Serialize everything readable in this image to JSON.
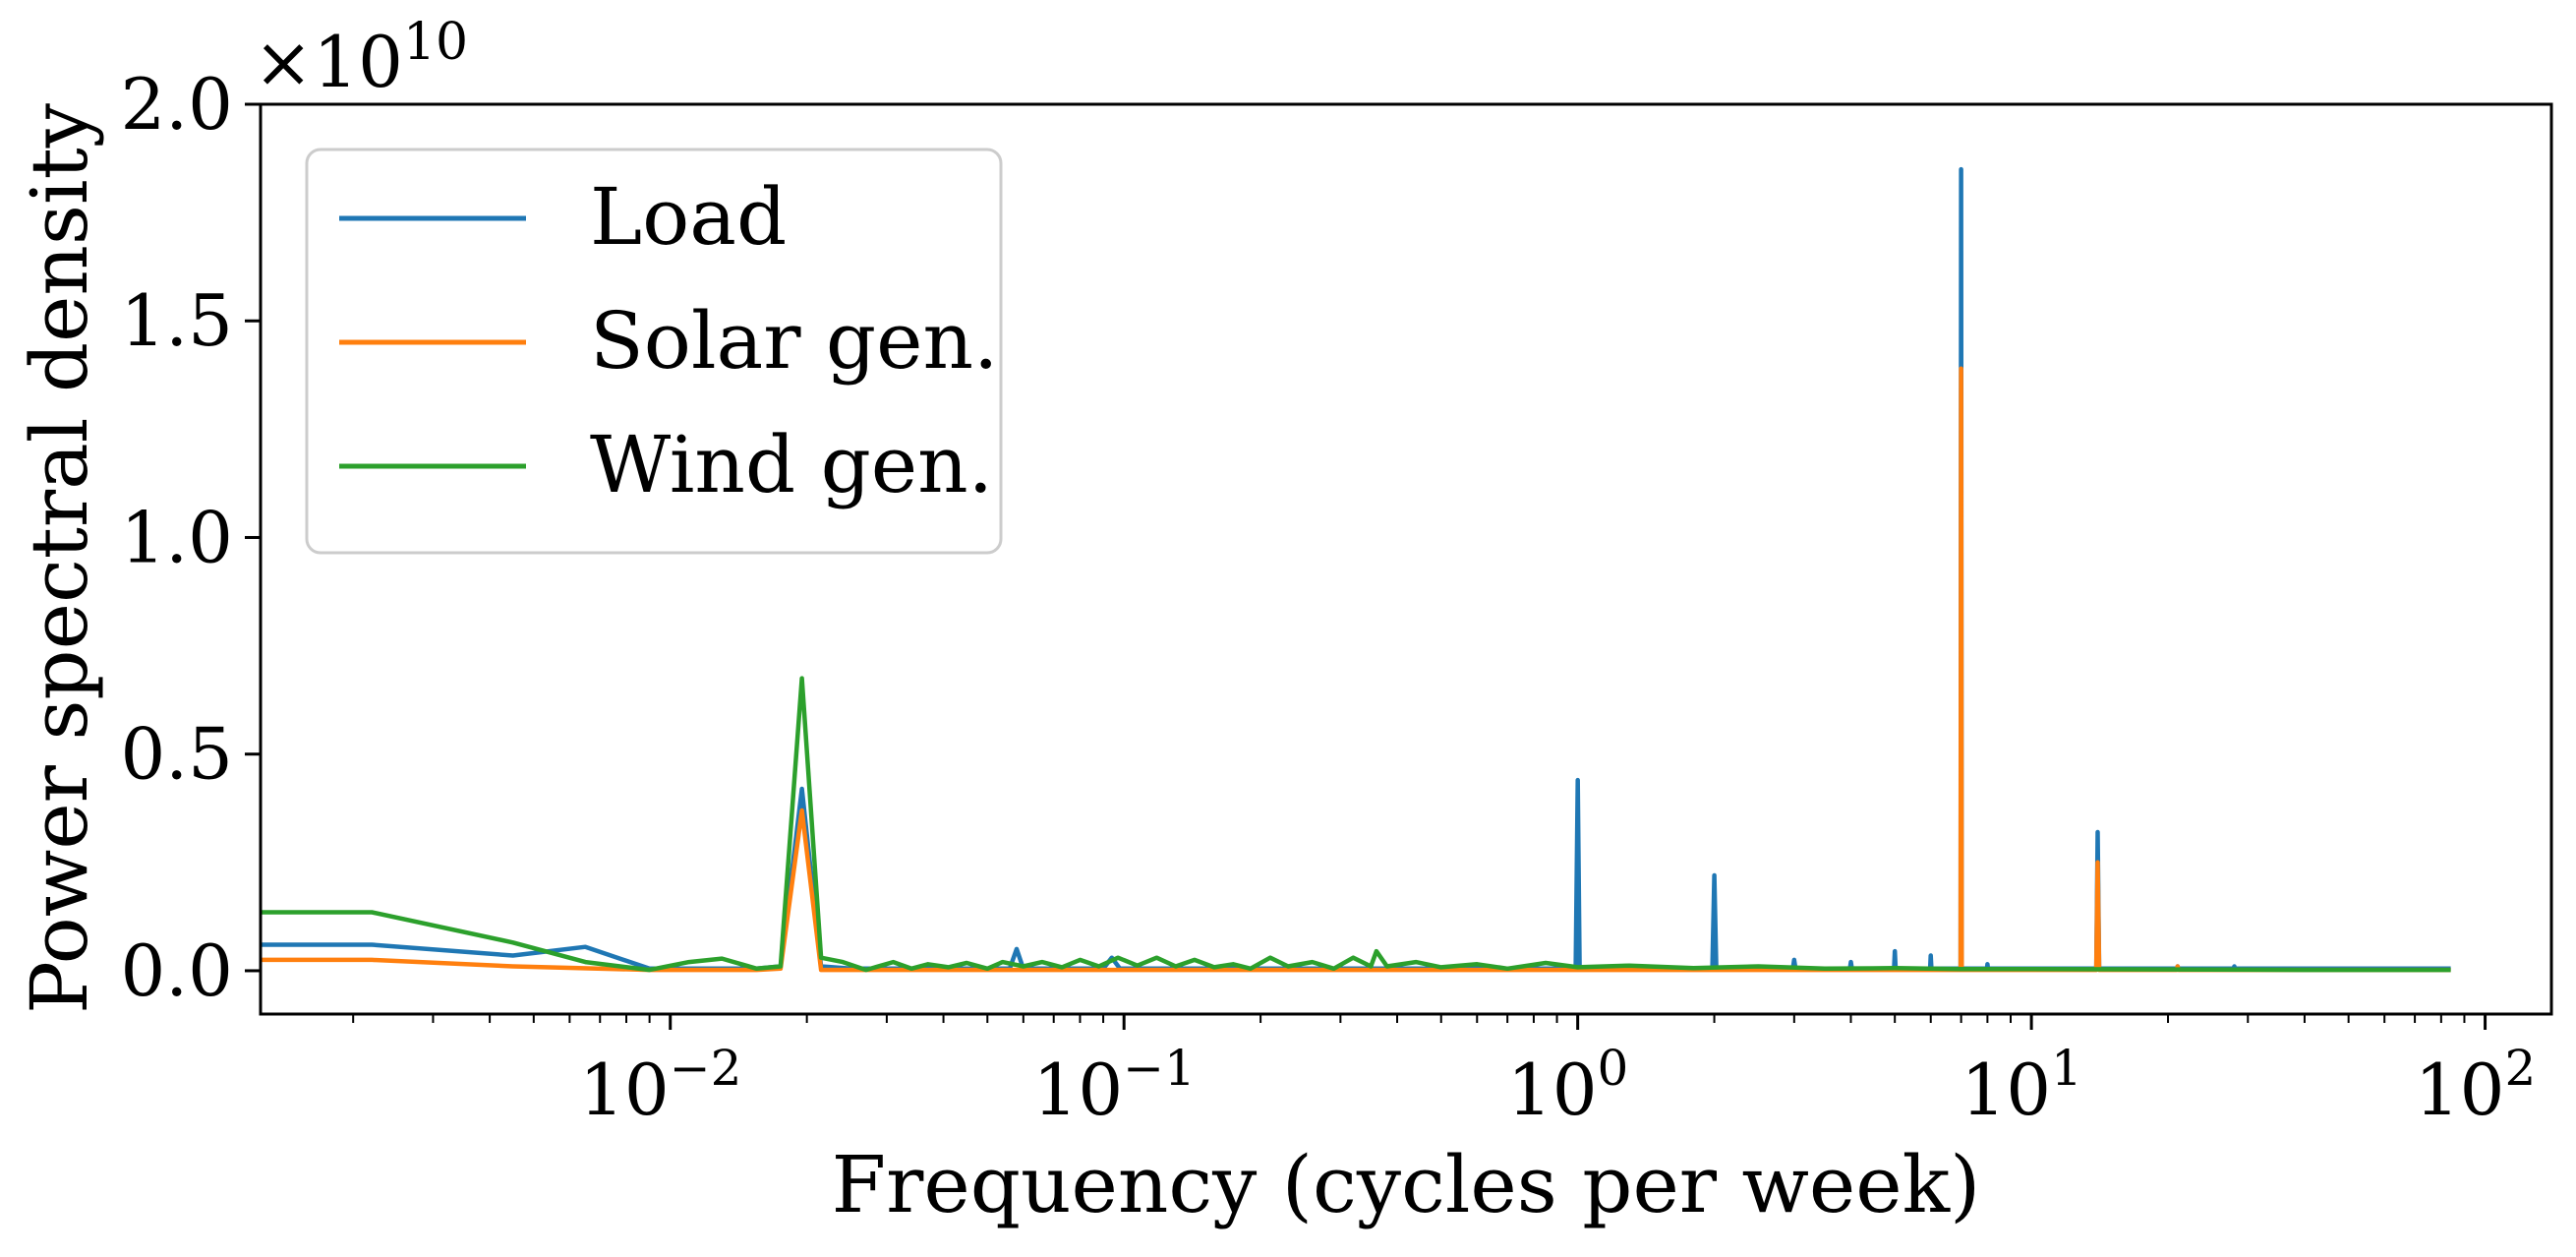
{
  "chart_data": {
    "type": "line",
    "title": "",
    "xlabel": "Frequency (cycles per week)",
    "ylabel": "Power spectral density",
    "xscale": "log",
    "xlim": [
      0.00125,
      140
    ],
    "ylim": [
      -0.1,
      2.0
    ],
    "y_multiplier_label": "×10",
    "y_multiplier_exponent": "10",
    "xticks": [
      {
        "value": 0.01,
        "base": "10",
        "exp": "−2"
      },
      {
        "value": 0.1,
        "base": "10",
        "exp": "−1"
      },
      {
        "value": 1,
        "base": "10",
        "exp": "0"
      },
      {
        "value": 10,
        "base": "10",
        "exp": "1"
      },
      {
        "value": 100,
        "base": "10",
        "exp": "2"
      }
    ],
    "yticks": [
      {
        "value": 0.0,
        "label": "0.0"
      },
      {
        "value": 0.5,
        "label": "0.5"
      },
      {
        "value": 1.0,
        "label": "1.0"
      },
      {
        "value": 1.5,
        "label": "1.5"
      },
      {
        "value": 2.0,
        "label": "2.0"
      }
    ],
    "grid": false,
    "legend_position": "top-left",
    "series": [
      {
        "name": "Load",
        "color": "#1f77b4",
        "points": [
          [
            0.00125,
            0.06
          ],
          [
            0.0022,
            0.06
          ],
          [
            0.0045,
            0.035
          ],
          [
            0.0065,
            0.055
          ],
          [
            0.009,
            0.005
          ],
          [
            0.012,
            0.005
          ],
          [
            0.0155,
            0.005
          ],
          [
            0.0175,
            0.01
          ],
          [
            0.0195,
            0.42
          ],
          [
            0.0215,
            0.01
          ],
          [
            0.025,
            0.005
          ],
          [
            0.035,
            0.005
          ],
          [
            0.05,
            0.005
          ],
          [
            0.056,
            0.005
          ],
          [
            0.058,
            0.05
          ],
          [
            0.06,
            0.005
          ],
          [
            0.09,
            0.005
          ],
          [
            0.094,
            0.03
          ],
          [
            0.098,
            0.005
          ],
          [
            0.2,
            0.005
          ],
          [
            0.5,
            0.005
          ],
          [
            0.99,
            0.005
          ],
          [
            1.0,
            0.44
          ],
          [
            1.01,
            0.005
          ],
          [
            1.98,
            0.005
          ],
          [
            2.0,
            0.22
          ],
          [
            2.02,
            0.005
          ],
          [
            2.98,
            0.005
          ],
          [
            3.0,
            0.025
          ],
          [
            3.02,
            0.005
          ],
          [
            3.98,
            0.005
          ],
          [
            4.0,
            0.02
          ],
          [
            4.02,
            0.005
          ],
          [
            4.98,
            0.005
          ],
          [
            5.0,
            0.045
          ],
          [
            5.02,
            0.005
          ],
          [
            5.98,
            0.005
          ],
          [
            6.0,
            0.035
          ],
          [
            6.02,
            0.005
          ],
          [
            6.98,
            0.005
          ],
          [
            7.0,
            1.85
          ],
          [
            7.02,
            0.005
          ],
          [
            7.98,
            0.005
          ],
          [
            8.0,
            0.015
          ],
          [
            8.02,
            0.005
          ],
          [
            13.9,
            0.005
          ],
          [
            14.0,
            0.32
          ],
          [
            14.1,
            0.005
          ],
          [
            20.9,
            0.005
          ],
          [
            21.0,
            0.01
          ],
          [
            21.1,
            0.005
          ],
          [
            27.9,
            0.005
          ],
          [
            28.0,
            0.01
          ],
          [
            28.1,
            0.005
          ],
          [
            84,
            0.005
          ]
        ]
      },
      {
        "name": "Solar gen.",
        "color": "#ff7f0e",
        "points": [
          [
            0.00125,
            0.025
          ],
          [
            0.0022,
            0.025
          ],
          [
            0.0045,
            0.01
          ],
          [
            0.009,
            0.002
          ],
          [
            0.0155,
            0.002
          ],
          [
            0.0175,
            0.005
          ],
          [
            0.0195,
            0.37
          ],
          [
            0.0215,
            0.002
          ],
          [
            0.1,
            0.002
          ],
          [
            1.0,
            0.002
          ],
          [
            6.98,
            0.002
          ],
          [
            7.0,
            1.39
          ],
          [
            7.02,
            0.002
          ],
          [
            13.9,
            0.002
          ],
          [
            14.0,
            0.25
          ],
          [
            14.1,
            0.002
          ],
          [
            20.9,
            0.002
          ],
          [
            21.0,
            0.01
          ],
          [
            21.1,
            0.002
          ],
          [
            84,
            0.002
          ]
        ]
      },
      {
        "name": "Wind gen.",
        "color": "#2ca02c",
        "points": [
          [
            0.00125,
            0.135
          ],
          [
            0.0022,
            0.135
          ],
          [
            0.0045,
            0.065
          ],
          [
            0.0065,
            0.02
          ],
          [
            0.009,
            0.002
          ],
          [
            0.011,
            0.02
          ],
          [
            0.013,
            0.028
          ],
          [
            0.0155,
            0.005
          ],
          [
            0.0175,
            0.01
          ],
          [
            0.0195,
            0.675
          ],
          [
            0.0215,
            0.03
          ],
          [
            0.024,
            0.02
          ],
          [
            0.027,
            0.002
          ],
          [
            0.031,
            0.02
          ],
          [
            0.034,
            0.005
          ],
          [
            0.037,
            0.015
          ],
          [
            0.041,
            0.008
          ],
          [
            0.045,
            0.018
          ],
          [
            0.05,
            0.005
          ],
          [
            0.054,
            0.02
          ],
          [
            0.06,
            0.01
          ],
          [
            0.066,
            0.02
          ],
          [
            0.073,
            0.008
          ],
          [
            0.08,
            0.025
          ],
          [
            0.088,
            0.01
          ],
          [
            0.097,
            0.03
          ],
          [
            0.107,
            0.012
          ],
          [
            0.118,
            0.03
          ],
          [
            0.13,
            0.01
          ],
          [
            0.143,
            0.025
          ],
          [
            0.158,
            0.008
          ],
          [
            0.174,
            0.015
          ],
          [
            0.19,
            0.005
          ],
          [
            0.21,
            0.03
          ],
          [
            0.23,
            0.01
          ],
          [
            0.26,
            0.02
          ],
          [
            0.29,
            0.005
          ],
          [
            0.32,
            0.03
          ],
          [
            0.35,
            0.01
          ],
          [
            0.36,
            0.045
          ],
          [
            0.38,
            0.01
          ],
          [
            0.44,
            0.02
          ],
          [
            0.5,
            0.008
          ],
          [
            0.6,
            0.015
          ],
          [
            0.7,
            0.005
          ],
          [
            0.85,
            0.018
          ],
          [
            1.0,
            0.008
          ],
          [
            1.3,
            0.012
          ],
          [
            1.8,
            0.006
          ],
          [
            2.5,
            0.01
          ],
          [
            3.5,
            0.005
          ],
          [
            5.0,
            0.006
          ],
          [
            7.0,
            0.004
          ],
          [
            10,
            0.004
          ],
          [
            20,
            0.003
          ],
          [
            40,
            0.002
          ],
          [
            84,
            0.002
          ]
        ]
      }
    ]
  }
}
